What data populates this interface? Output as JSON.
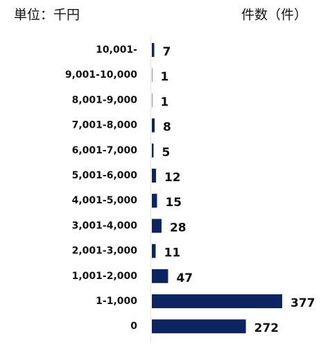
{
  "chart_data": {
    "type": "barh",
    "unit_label": "単位：千円",
    "value_label": "件数（件）",
    "categories": [
      "10,001-",
      "9,001-10,000",
      "8,001-9,000",
      "7,001-8,000",
      "6,001-7,000",
      "5,001-6,000",
      "4,001-5,000",
      "3,001-4,000",
      "2,001-3,000",
      "1,001-2,000",
      "1-1,000",
      "0"
    ],
    "values": [
      7,
      1,
      1,
      8,
      5,
      12,
      15,
      28,
      11,
      47,
      377,
      272
    ],
    "color": "#0d2463"
  }
}
